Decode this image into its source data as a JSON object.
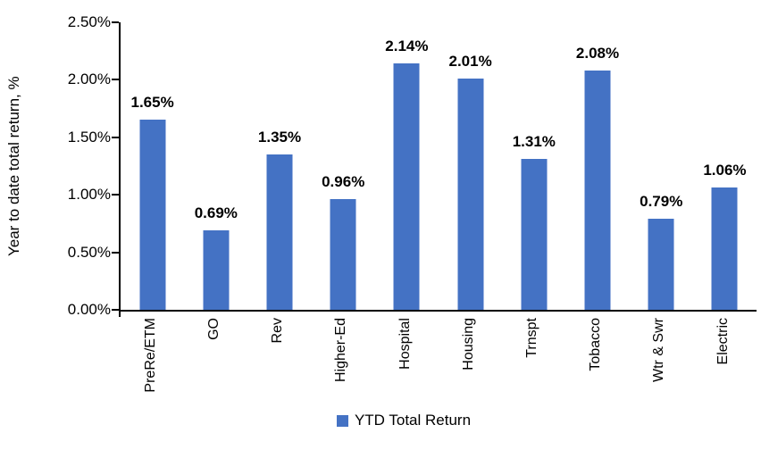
{
  "chart_data": {
    "type": "bar",
    "title": "",
    "xlabel": "",
    "ylabel": "Year to date total return, %",
    "categories": [
      "PreRe/ETM",
      "GO",
      "Rev",
      "Higher-Ed",
      "Hospital",
      "Housing",
      "Trnspt",
      "Tobacco",
      "Wtr & Swr",
      "Electric"
    ],
    "values": [
      1.65,
      0.69,
      1.35,
      0.96,
      2.14,
      2.01,
      1.31,
      2.08,
      0.79,
      1.06
    ],
    "value_labels": [
      "1.65%",
      "0.69%",
      "1.35%",
      "0.96%",
      "2.14%",
      "2.01%",
      "1.31%",
      "2.08%",
      "0.79%",
      "1.06%"
    ],
    "ylim": [
      0,
      2.5
    ],
    "yticks": [
      "0.00%",
      "0.50%",
      "1.00%",
      "1.50%",
      "2.00%",
      "2.50%"
    ],
    "grid": false,
    "bar_color": "#4472C4",
    "axis_color": "#000000",
    "text_color": "#000000",
    "legend": {
      "position": "bottom",
      "entries": [
        {
          "label": "YTD Total Return",
          "color": "#4472C4"
        }
      ]
    }
  }
}
